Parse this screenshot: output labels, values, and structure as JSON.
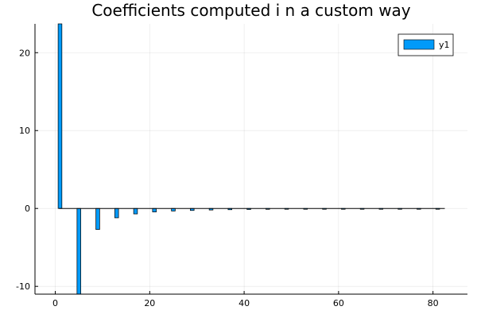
{
  "chart_data": {
    "type": "bar",
    "title": "Coefficients computed i    n a custom way",
    "xlabel": "",
    "ylabel": "",
    "xlim": [
      -4.3,
      87.3
    ],
    "ylim": [
      -11,
      23.7
    ],
    "xticks": [
      0,
      20,
      40,
      60,
      80
    ],
    "yticks": [
      -10,
      0,
      10,
      20
    ],
    "grid": true,
    "legend_position": "top-right",
    "bar_color": "#009af9",
    "series": [
      {
        "name": "y1",
        "x": [
          1,
          5,
          9,
          13,
          17,
          21,
          25,
          29,
          33,
          37,
          41,
          45,
          49,
          53,
          57,
          61,
          65,
          69,
          73,
          77,
          81
        ],
        "values": [
          23.7,
          -11,
          -2.7,
          -1.2,
          -0.7,
          -0.45,
          -0.33,
          -0.26,
          -0.2,
          -0.16,
          -0.13,
          -0.11,
          -0.1,
          -0.08,
          -0.07,
          -0.06,
          -0.05,
          -0.05,
          -0.04,
          -0.04,
          -0.03
        ]
      }
    ],
    "baseline": {
      "y": 0,
      "x_range": [
        0.8,
        82.5
      ]
    }
  }
}
